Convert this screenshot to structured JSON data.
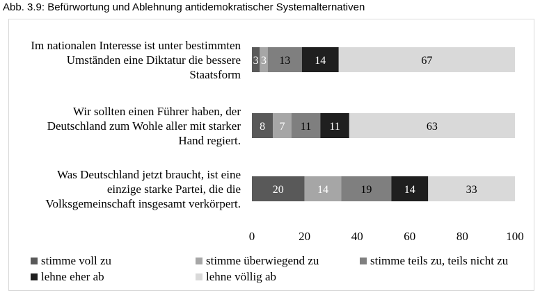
{
  "figure_title": "Abb. 3.9: Befürwortung und Ablehnung antidemokratischer Systemalternativen",
  "chart_data": {
    "type": "bar",
    "orientation": "horizontal",
    "stacked": true,
    "categories": [
      [
        "Im nationalen Interesse ist unter bestimmten",
        "Umständen eine Diktatur die bessere",
        "Staatsform"
      ],
      [
        "Wir sollten einen Führer haben, der",
        "Deutschland zum Wohle aller mit starker",
        "Hand regiert."
      ],
      [
        "Was Deutschland jetzt braucht, ist eine",
        "einzige starke Partei, die die",
        "Volksgemeinschaft insgesamt verkörpert."
      ]
    ],
    "series": [
      {
        "name": "stimme voll zu",
        "color": "#595959",
        "label_color": "#ffffff",
        "values": [
          3,
          8,
          20
        ]
      },
      {
        "name": "stimme überwiegend zu",
        "color": "#a6a6a6",
        "label_color": "#ffffff",
        "values": [
          3,
          7,
          14
        ]
      },
      {
        "name": "stimme teils zu, teils nicht zu",
        "color": "#7f7f7f",
        "label_color": "#000000",
        "values": [
          13,
          11,
          19
        ]
      },
      {
        "name": "lehne eher ab",
        "color": "#1f1f1f",
        "label_color": "#ffffff",
        "values": [
          14,
          11,
          14
        ]
      },
      {
        "name": "lehne völlig ab",
        "color": "#d9d9d9",
        "label_color": "#000000",
        "values": [
          67,
          63,
          33
        ]
      }
    ],
    "xlim": [
      0,
      100
    ],
    "xticks": [
      "0",
      "20",
      "40",
      "60",
      "80",
      "100"
    ],
    "grid": false,
    "legend_position": "bottom"
  }
}
